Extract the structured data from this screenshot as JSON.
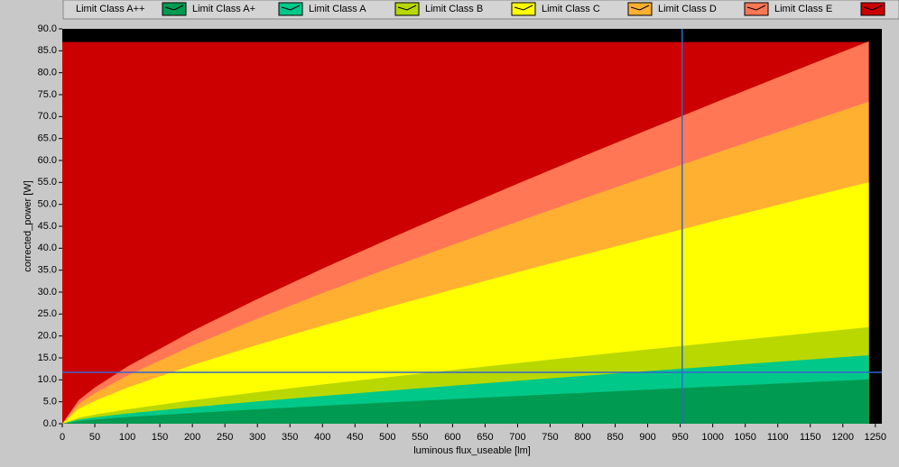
{
  "chart_data": {
    "type": "area",
    "x_label": "luminous flux_useable [lm]",
    "y_label": "corrected_power [W]",
    "x": [
      0,
      25,
      50,
      100,
      200,
      300,
      400,
      500,
      600,
      700,
      800,
      900,
      1000,
      1100,
      1200,
      1240
    ],
    "series": [
      {
        "name": "Limit Class A++",
        "color": "#009a50",
        "values": [
          0,
          0.62,
          0.95,
          1.51,
          2.45,
          3.29,
          4.09,
          4.86,
          5.61,
          6.33,
          7.05,
          7.76,
          8.45,
          9.14,
          9.82,
          10.09
        ]
      },
      {
        "name": "Limit Class A+",
        "color": "#00c888",
        "values": [
          0,
          0.96,
          1.47,
          2.33,
          3.78,
          5.09,
          6.32,
          7.51,
          8.66,
          9.79,
          10.9,
          11.99,
          13.06,
          14.12,
          15.18,
          15.6
        ]
      },
      {
        "name": "Limit Class A",
        "color": "#b8d800",
        "values": [
          0,
          1.35,
          2.08,
          3.29,
          5.34,
          7.19,
          8.93,
          10.6,
          12.23,
          13.82,
          15.38,
          16.92,
          18.44,
          19.94,
          21.43,
          22.02
        ]
      },
      {
        "name": "Limit Class B",
        "color": "#ffff00",
        "values": [
          0,
          3.38,
          5.2,
          8.22,
          13.35,
          17.97,
          22.32,
          26.51,
          30.57,
          34.55,
          38.45,
          42.3,
          46.1,
          49.85,
          53.57,
          55.05
        ]
      },
      {
        "name": "Limit Class C",
        "color": "#ffb030",
        "values": [
          0,
          4.5,
          6.94,
          10.96,
          17.8,
          23.95,
          29.76,
          35.34,
          40.76,
          46.07,
          51.27,
          56.4,
          61.46,
          66.47,
          71.43,
          73.4
        ]
      },
      {
        "name": "Limit Class D",
        "color": "#ff7755",
        "values": [
          0,
          5.34,
          8.24,
          13.02,
          21.13,
          28.44,
          35.34,
          41.97,
          48.41,
          54.7,
          60.89,
          66.98,
          72.99,
          78.93,
          84.82,
          87.16
        ]
      },
      {
        "name": "Limit Class E",
        "color": "#cc0000",
        "values": [
          87,
          87,
          87,
          87,
          87,
          87,
          87,
          87,
          87,
          87,
          87,
          87,
          87,
          87,
          87,
          87
        ]
      }
    ],
    "cursor": {
      "x": 953,
      "y": 11.7,
      "color": "#3366cc"
    },
    "xlim": [
      0,
      1260
    ],
    "ylim": [
      0,
      90
    ],
    "xticks": [
      0,
      50,
      100,
      150,
      200,
      250,
      300,
      350,
      400,
      450,
      500,
      550,
      600,
      650,
      700,
      750,
      800,
      850,
      900,
      950,
      1000,
      1050,
      1100,
      1150,
      1200,
      1250
    ],
    "yticks": [
      {
        "value": 0,
        "label": "0.0"
      },
      {
        "value": 5,
        "label": "5.0"
      },
      {
        "value": 10,
        "label": "10.0"
      },
      {
        "value": 15,
        "label": "15.0"
      },
      {
        "value": 20,
        "label": "20.0"
      },
      {
        "value": 25,
        "label": "25.0"
      },
      {
        "value": 30,
        "label": "30.0"
      },
      {
        "value": 35,
        "label": "35.0"
      },
      {
        "value": 40,
        "label": "40.0"
      },
      {
        "value": 45,
        "label": "45.0"
      },
      {
        "value": 50,
        "label": "50.0"
      },
      {
        "value": 55,
        "label": "55.0"
      },
      {
        "value": 60,
        "label": "60.0"
      },
      {
        "value": 65,
        "label": "65.0"
      },
      {
        "value": 70,
        "label": "70.0"
      },
      {
        "value": 75,
        "label": "75.0"
      },
      {
        "value": 80,
        "label": "80.0"
      },
      {
        "value": 85,
        "label": "85.0"
      },
      {
        "value": 90,
        "label": "90.0"
      }
    ]
  }
}
